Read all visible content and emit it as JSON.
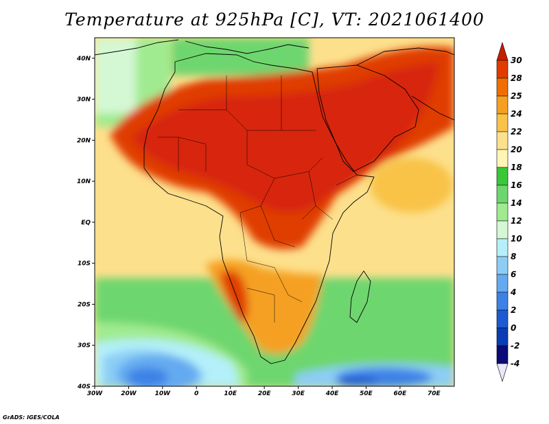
{
  "title": "Temperature at 925hPa [C], VT: 2021061400",
  "credit": "GrADS: IGES/COLA",
  "map": {
    "lon_ticks": [
      "30W",
      "20W",
      "10W",
      "0",
      "10E",
      "20E",
      "30E",
      "40E",
      "50E",
      "60E",
      "70E"
    ],
    "lat_ticks": [
      "40N",
      "30N",
      "20N",
      "10N",
      "EQ",
      "10S",
      "20S",
      "30S",
      "40S"
    ],
    "lon_range": [
      -30,
      76
    ],
    "lat_range": [
      -40,
      45
    ]
  },
  "colorbar": {
    "levels": [
      "30",
      "28",
      "25",
      "24",
      "22",
      "20",
      "18",
      "16",
      "14",
      "12",
      "10",
      "8",
      "6",
      "4",
      "2",
      "0",
      "-2",
      "-4"
    ],
    "colors": [
      "#c81e00",
      "#e03c00",
      "#f06e00",
      "#f5a023",
      "#f8c347",
      "#fde08c",
      "#fff6b4",
      "#38c838",
      "#6ed66e",
      "#a0eb90",
      "#d4f8d4",
      "#b4f0fa",
      "#8ccdf5",
      "#64aaf0",
      "#3c82e6",
      "#1e5ad2",
      "#0a3cb4",
      "#0a0a78",
      "#e8e8fa"
    ]
  },
  "colors": {
    "land_hot": "#d7280a",
    "sea_warm": "#fde08c",
    "sea_cool": "#6ed66e",
    "southern_cold": "#3c82e6",
    "border": "#000000"
  }
}
